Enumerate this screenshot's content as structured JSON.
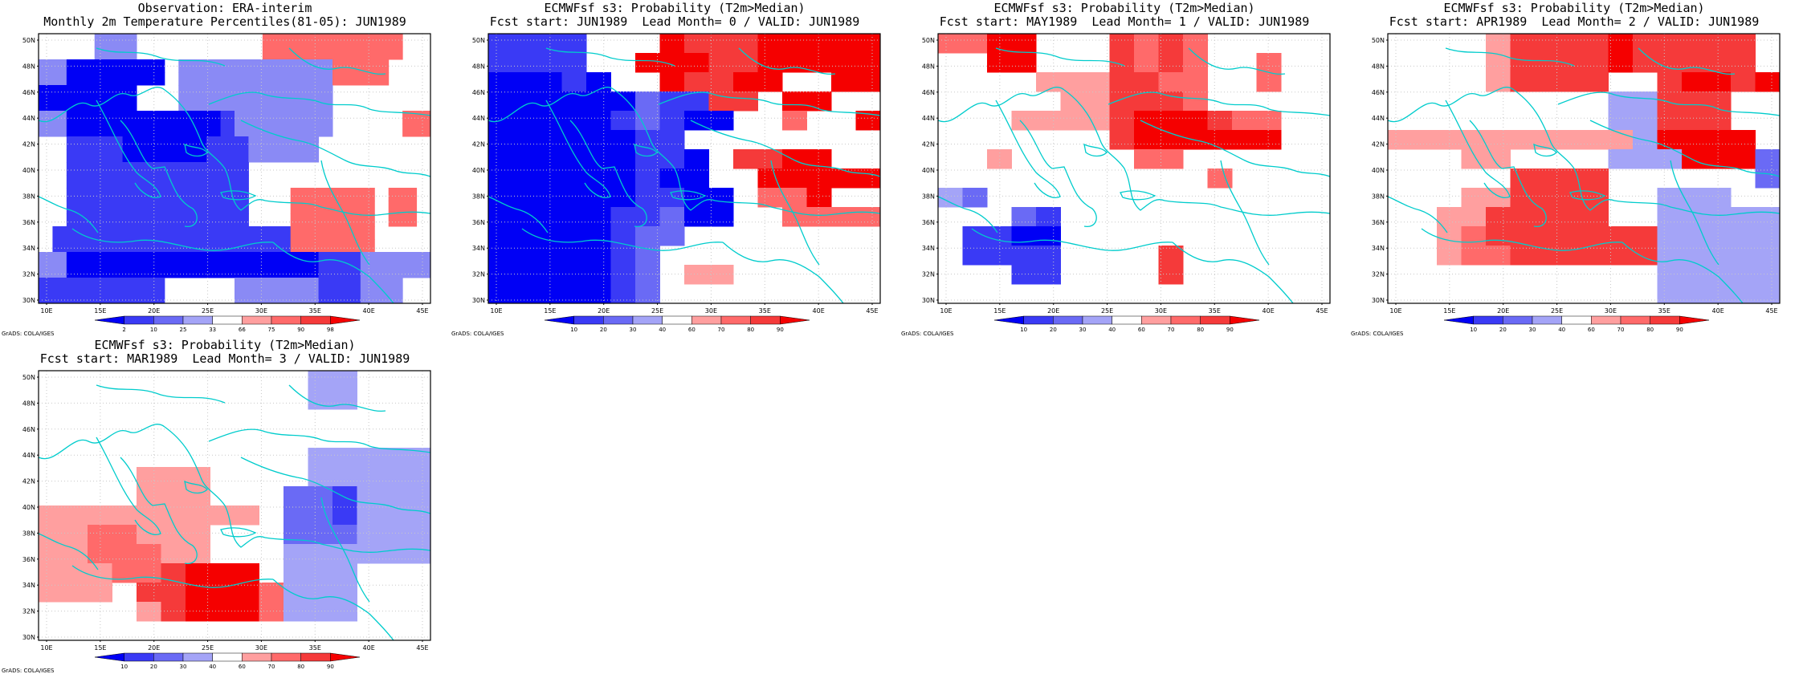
{
  "colorbar": {
    "colors": [
      "#0000f5",
      "#3a3af5",
      "#6a6af5",
      "#a4a4f7",
      "#ffffff",
      "#ff9f9f",
      "#ff6a6a",
      "#f53a3a",
      "#f50000"
    ],
    "observation_labels": [
      "2",
      "10",
      "25",
      "33",
      "66",
      "75",
      "90",
      "98"
    ],
    "probability_labels": [
      "10",
      "20",
      "30",
      "40",
      "60",
      "70",
      "80",
      "90"
    ]
  },
  "axes": {
    "lon_labels": [
      "10E",
      "15E",
      "20E",
      "25E",
      "30E",
      "35E",
      "40E",
      "45E"
    ],
    "lat_labels": [
      "30N",
      "32N",
      "34N",
      "36N",
      "38N",
      "40N",
      "42N",
      "44N",
      "46N",
      "48N",
      "50N"
    ]
  },
  "coastline_color": "#00cccc",
  "credit": "GrADS: COLA/IGES",
  "panels": [
    {
      "id": "obs",
      "title1": "Observation: ERA-interim",
      "title2": "Monthly 2m Temperature Percentiles(81-05): JUN1989",
      "kind": "observation",
      "grid": [
        "0000333000000000666666666600",
        "0000333000000000666666666600",
        "3311111110333333333336666000",
        "3311111110333333333336666000",
        "1111111000333333333330000000",
        "1111111000333333333330000000",
        "3311111111111233333330000066",
        "3311111111111233333330000066",
        "0022221111112223333300000000",
        "0022221111112223333300000000",
        "0022222222222220000000000000",
        "0022222222222220000000000000",
        "0022222222222220006666660660",
        "0022222222222220006666660660",
        "0022222222222220006666660660",
        "0222222222222222226666660000",
        "0222222222222222226666660000",
        "3311111111111111111122233333",
        "3311111111111111111122233333",
        "2222222220000033333322233300",
        "2222222220000033333322233300"
      ]
    },
    {
      "id": "lead0",
      "title1": "ECMWFsf s3: Probability (T2m>Median)",
      "title2": "Fcst start: JUN1989  Lead Month= 0 / VALID: JUN1989",
      "kind": "probability"
    },
    {
      "id": "lead1",
      "title1": "ECMWFsf s3: Probability (T2m>Median)",
      "title2": "Fcst start: MAY1989  Lead Month= 1 / VALID: JUN1989",
      "kind": "probability"
    },
    {
      "id": "lead2",
      "title1": "ECMWFsf s3: Probability (T2m>Median)",
      "title2": "Fcst start: APR1989  Lead Month= 2 / VALID: JUN1989",
      "kind": "probability"
    },
    {
      "id": "lead3",
      "title1": "ECMWFsf s3: Probability (T2m>Median)",
      "title2": "Fcst start: MAR1989  Lead Month= 3 / VALID: JUN1989",
      "kind": "probability"
    }
  ]
}
